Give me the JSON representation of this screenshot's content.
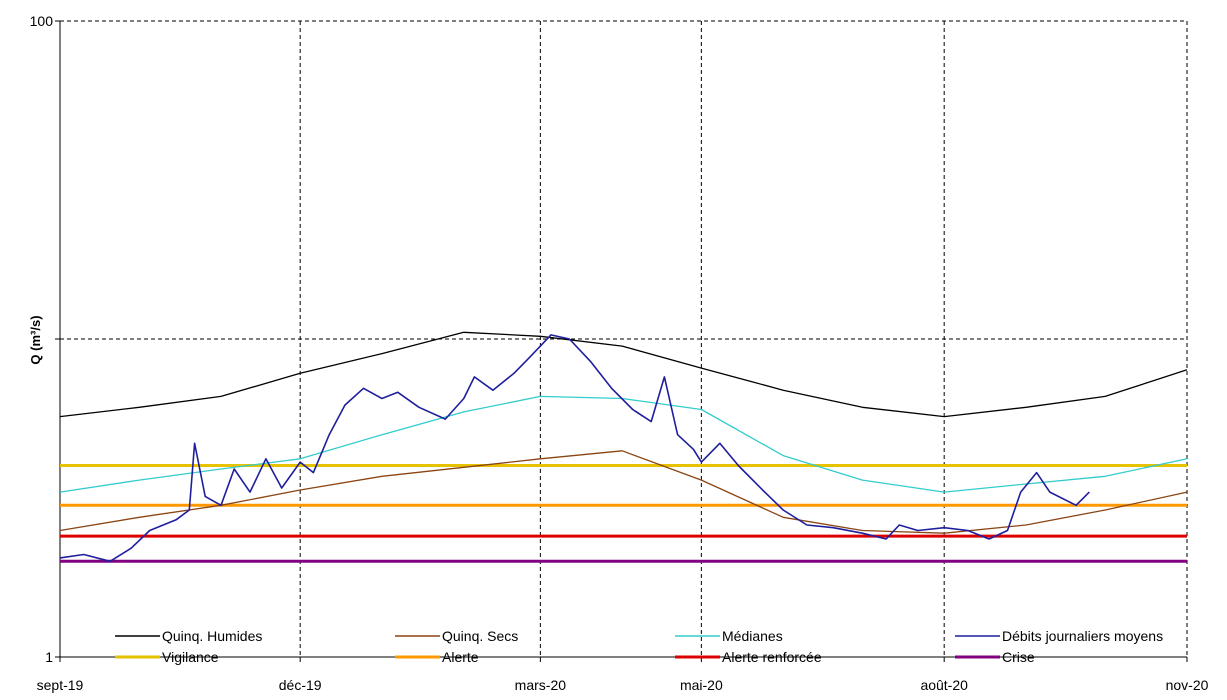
{
  "chart_data": {
    "type": "line",
    "title": "",
    "ylabel": "Q (m³/s)",
    "xlabel": "",
    "yscale": "log",
    "ylim": [
      1,
      100
    ],
    "xlim": [
      "2019-09-01",
      "2020-11-01"
    ],
    "y_ticks": [
      "1",
      "",
      "100"
    ],
    "x_ticks": [
      {
        "date": "2019-09-01",
        "label": "sept-19"
      },
      {
        "date": "2019-12-01",
        "label": "déc-19"
      },
      {
        "date": "2020-03-01",
        "label": "mars-20"
      },
      {
        "date": "2020-05-01",
        "label": "mai-20"
      },
      {
        "date": "2020-08-01",
        "label": "août-20"
      },
      {
        "date": "2020-11-01",
        "label": "nov-20"
      }
    ],
    "grid": true,
    "legend_position": "bottom",
    "series": [
      {
        "name": "Quinq. Humides",
        "color": "#000000",
        "kind": "curve",
        "points": [
          [
            "2019-09-01",
            5.7
          ],
          [
            "2019-10-01",
            6.1
          ],
          [
            "2019-11-01",
            6.6
          ],
          [
            "2019-12-01",
            7.8
          ],
          [
            "2020-01-01",
            9.0
          ],
          [
            "2020-02-01",
            10.5
          ],
          [
            "2020-03-01",
            10.2
          ],
          [
            "2020-04-01",
            9.5
          ],
          [
            "2020-05-01",
            8.1
          ],
          [
            "2020-06-01",
            6.9
          ],
          [
            "2020-07-01",
            6.1
          ],
          [
            "2020-08-01",
            5.7
          ],
          [
            "2020-09-01",
            6.1
          ],
          [
            "2020-10-01",
            6.6
          ],
          [
            "2020-11-01",
            8.0
          ]
        ]
      },
      {
        "name": "Quinq. Secs",
        "color": "#8b4513",
        "kind": "curve",
        "points": [
          [
            "2019-09-01",
            2.5
          ],
          [
            "2019-10-01",
            2.75
          ],
          [
            "2019-11-01",
            3.0
          ],
          [
            "2019-12-01",
            3.35
          ],
          [
            "2020-01-01",
            3.7
          ],
          [
            "2020-02-01",
            3.95
          ],
          [
            "2020-03-01",
            4.2
          ],
          [
            "2020-04-01",
            4.45
          ],
          [
            "2020-05-01",
            3.6
          ],
          [
            "2020-06-01",
            2.75
          ],
          [
            "2020-07-01",
            2.5
          ],
          [
            "2020-08-01",
            2.45
          ],
          [
            "2020-09-01",
            2.6
          ],
          [
            "2020-10-01",
            2.9
          ],
          [
            "2020-11-01",
            3.3
          ]
        ]
      },
      {
        "name": "Médianes",
        "color": "#33cccc",
        "kind": "curve",
        "points": [
          [
            "2019-09-01",
            3.3
          ],
          [
            "2019-10-01",
            3.6
          ],
          [
            "2019-11-01",
            3.9
          ],
          [
            "2019-12-01",
            4.2
          ],
          [
            "2020-01-01",
            5.0
          ],
          [
            "2020-02-01",
            5.9
          ],
          [
            "2020-03-01",
            6.6
          ],
          [
            "2020-04-01",
            6.5
          ],
          [
            "2020-05-01",
            6.0
          ],
          [
            "2020-06-01",
            4.3
          ],
          [
            "2020-07-01",
            3.6
          ],
          [
            "2020-08-01",
            3.3
          ],
          [
            "2020-09-01",
            3.5
          ],
          [
            "2020-10-01",
            3.7
          ],
          [
            "2020-11-01",
            4.2
          ]
        ]
      },
      {
        "name": "Débits journaliers moyens",
        "color": "#1f1f9e",
        "kind": "curve",
        "points": [
          [
            "2019-09-01",
            2.05
          ],
          [
            "2019-09-10",
            2.1
          ],
          [
            "2019-09-20",
            2.0
          ],
          [
            "2019-09-28",
            2.2
          ],
          [
            "2019-10-05",
            2.5
          ],
          [
            "2019-10-15",
            2.7
          ],
          [
            "2019-10-20",
            2.9
          ],
          [
            "2019-10-22",
            4.7
          ],
          [
            "2019-10-26",
            3.2
          ],
          [
            "2019-11-01",
            3.0
          ],
          [
            "2019-11-06",
            3.9
          ],
          [
            "2019-11-12",
            3.3
          ],
          [
            "2019-11-18",
            4.2
          ],
          [
            "2019-11-24",
            3.4
          ],
          [
            "2019-12-01",
            4.1
          ],
          [
            "2019-12-06",
            3.8
          ],
          [
            "2019-12-12",
            5.0
          ],
          [
            "2019-12-18",
            6.2
          ],
          [
            "2019-12-25",
            7.0
          ],
          [
            "2020-01-01",
            6.5
          ],
          [
            "2020-01-07",
            6.8
          ],
          [
            "2020-01-15",
            6.1
          ],
          [
            "2020-01-25",
            5.6
          ],
          [
            "2020-02-01",
            6.5
          ],
          [
            "2020-02-05",
            7.6
          ],
          [
            "2020-02-12",
            6.9
          ],
          [
            "2020-02-20",
            7.8
          ],
          [
            "2020-02-25",
            8.6
          ],
          [
            "2020-03-01",
            9.5
          ],
          [
            "2020-03-05",
            10.3
          ],
          [
            "2020-03-12",
            10.0
          ],
          [
            "2020-03-20",
            8.5
          ],
          [
            "2020-03-28",
            7.0
          ],
          [
            "2020-04-05",
            6.0
          ],
          [
            "2020-04-12",
            5.5
          ],
          [
            "2020-04-17",
            7.6
          ],
          [
            "2020-04-22",
            5.0
          ],
          [
            "2020-04-28",
            4.5
          ],
          [
            "2020-05-01",
            4.1
          ],
          [
            "2020-05-08",
            4.7
          ],
          [
            "2020-05-15",
            4.0
          ],
          [
            "2020-05-25",
            3.3
          ],
          [
            "2020-06-01",
            2.9
          ],
          [
            "2020-06-10",
            2.6
          ],
          [
            "2020-06-20",
            2.55
          ],
          [
            "2020-07-01",
            2.45
          ],
          [
            "2020-07-10",
            2.35
          ],
          [
            "2020-07-15",
            2.6
          ],
          [
            "2020-07-22",
            2.5
          ],
          [
            "2020-08-01",
            2.55
          ],
          [
            "2020-08-10",
            2.5
          ],
          [
            "2020-08-18",
            2.35
          ],
          [
            "2020-08-25",
            2.5
          ],
          [
            "2020-08-30",
            3.3
          ],
          [
            "2020-09-05",
            3.8
          ],
          [
            "2020-09-10",
            3.3
          ],
          [
            "2020-09-20",
            3.0
          ],
          [
            "2020-09-25",
            3.3
          ]
        ]
      }
    ],
    "thresholds": [
      {
        "name": "Vigilance",
        "color": "#e6c200",
        "value": 4.0
      },
      {
        "name": "Alerte",
        "color": "#ff9900",
        "value": 3.0
      },
      {
        "name": "Alerte renforcée",
        "color": "#dd0000",
        "value": 2.4
      },
      {
        "name": "Crise",
        "color": "#800080",
        "value": 2.0
      }
    ]
  }
}
